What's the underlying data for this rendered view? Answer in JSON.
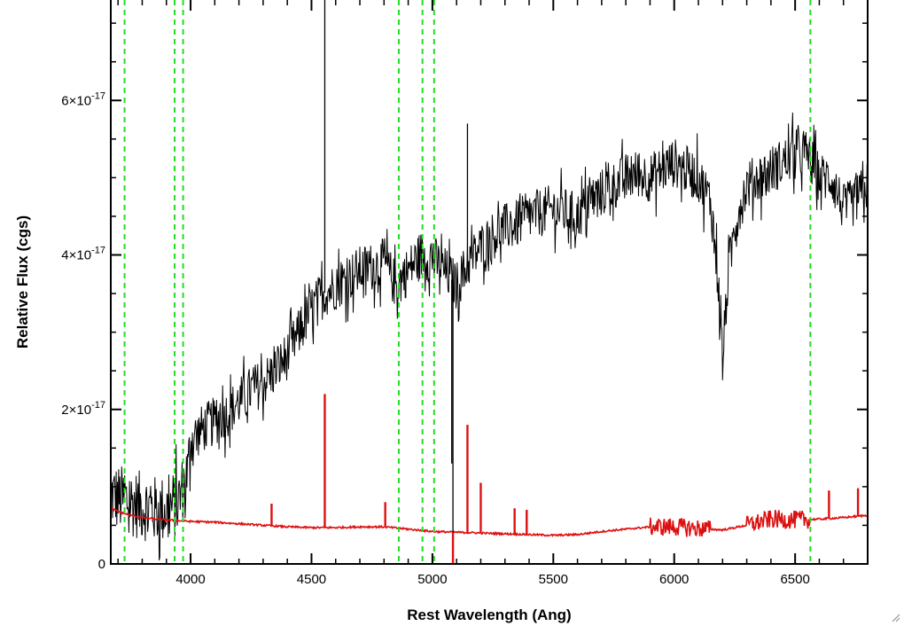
{
  "chart_data": {
    "type": "line",
    "title": "",
    "xlabel": "Rest Wavelength (Ang)",
    "ylabel": "Relative Flux (cgs)",
    "xlim": [
      3670,
      6800
    ],
    "ylim": [
      0,
      7.3e-17
    ],
    "grid": false,
    "legend": "none",
    "x_ticks": [
      {
        "value": 4000,
        "label": "4000"
      },
      {
        "value": 4500,
        "label": "4500"
      },
      {
        "value": 5000,
        "label": "5000"
      },
      {
        "value": 5500,
        "label": "5500"
      },
      {
        "value": 6000,
        "label": "6000"
      },
      {
        "value": 6500,
        "label": "6500"
      }
    ],
    "y_ticks": [
      {
        "value": 0,
        "base": "0",
        "exp": ""
      },
      {
        "value": 2e-17,
        "base": "2×10",
        "exp": "-17"
      },
      {
        "value": 4e-17,
        "base": "4×10",
        "exp": "-17"
      },
      {
        "value": 6e-17,
        "base": "6×10",
        "exp": "-17"
      }
    ],
    "reference_lines": [
      3727,
      3934,
      3969,
      4861,
      4959,
      5007,
      6563
    ],
    "series": [
      {
        "color": "#000000",
        "x": [
          3670,
          3700,
          3750,
          3800,
          3850,
          3900,
          3950,
          3990,
          4000,
          4050,
          4100,
          4150,
          4200,
          4250,
          4300,
          4350,
          4400,
          4450,
          4500,
          4550,
          4600,
          4650,
          4700,
          4750,
          4800,
          4850,
          4900,
          4950,
          5000,
          5050,
          5100,
          5150,
          5200,
          5250,
          5300,
          5350,
          5400,
          5450,
          5500,
          5550,
          5600,
          5650,
          5700,
          5750,
          5800,
          5850,
          5900,
          5950,
          6000,
          6050,
          6100,
          6150,
          6180,
          6200,
          6220,
          6250,
          6300,
          6350,
          6400,
          6450,
          6500,
          6550,
          6600,
          6650,
          6700,
          6750,
          6800
        ],
        "y": [
          9e-18,
          8.5e-18,
          8e-18,
          7.5e-18,
          7e-18,
          7e-18,
          8e-18,
          1.2e-17,
          1.6e-17,
          1.75e-17,
          1.85e-17,
          1.95e-17,
          2.1e-17,
          2.25e-17,
          2.35e-17,
          2.5e-17,
          2.7e-17,
          3e-17,
          3.3e-17,
          3.5e-17,
          3.6e-17,
          3.7e-17,
          3.8e-17,
          3.85e-17,
          3.9e-17,
          3.6e-17,
          3.8e-17,
          4e-17,
          3.95e-17,
          3.8e-17,
          3.6e-17,
          3.9e-17,
          4.1e-17,
          4.25e-17,
          4.35e-17,
          4.4e-17,
          4.5e-17,
          4.55e-17,
          4.6e-17,
          4.55e-17,
          4.5e-17,
          4.7e-17,
          4.8e-17,
          4.9e-17,
          5e-17,
          5.05e-17,
          5e-17,
          5.1e-17,
          5.2e-17,
          5.1e-17,
          5e-17,
          4.7e-17,
          3.8e-17,
          2.6e-17,
          3.6e-17,
          4.4e-17,
          4.9e-17,
          5e-17,
          5.1e-17,
          5.2e-17,
          5.3e-17,
          5.3e-17,
          5e-17,
          5e-17,
          4.6e-17,
          4.7e-17,
          4.9e-17
        ]
      },
      {
        "color": "#dd1010",
        "x": [
          3670,
          3700,
          3750,
          3800,
          3850,
          3900,
          3950,
          4000,
          4100,
          4200,
          4300,
          4400,
          4500,
          4600,
          4700,
          4800,
          4900,
          5000,
          5100,
          5200,
          5300,
          5400,
          5500,
          5600,
          5700,
          5800,
          5900,
          6000,
          6100,
          6200,
          6300,
          6400,
          6500,
          6600,
          6700,
          6800
        ],
        "y": [
          7.2e-18,
          6.8e-18,
          6.3e-18,
          6e-18,
          5.8e-18,
          5.7e-18,
          5.6e-18,
          5.5e-18,
          5.4e-18,
          5.2e-18,
          5e-18,
          4.8e-18,
          4.7e-18,
          4.7e-18,
          4.8e-18,
          4.8e-18,
          4.5e-18,
          4.2e-18,
          4.1e-18,
          4e-18,
          3.9e-18,
          3.8e-18,
          3.7e-18,
          3.8e-18,
          4.2e-18,
          4.5e-18,
          4.8e-18,
          4.8e-18,
          4.6e-18,
          4.4e-18,
          5e-18,
          5.8e-18,
          5.7e-18,
          5.8e-18,
          6e-18,
          6.3e-18
        ]
      }
    ],
    "line_features": {
      "black": [
        {
          "x": 4555,
          "y": 7.4e-17
        },
        {
          "x": 5080,
          "y": 1.3e-17
        },
        {
          "x": 5145,
          "y": 5.7e-17
        },
        {
          "x": 5085,
          "y": 0.0
        }
      ],
      "red": [
        {
          "x": 4555,
          "y": 2.2e-17
        },
        {
          "x": 5145,
          "y": 1.8e-17
        },
        {
          "x": 5200,
          "y": 1.05e-17
        },
        {
          "x": 4805,
          "y": 8e-18
        },
        {
          "x": 4335,
          "y": 7.8e-18
        },
        {
          "x": 5340,
          "y": 7.2e-18
        },
        {
          "x": 5390,
          "y": 7e-18
        },
        {
          "x": 6640,
          "y": 9.5e-18
        },
        {
          "x": 6760,
          "y": 9.8e-18
        },
        {
          "x": 5085,
          "y": 0.0
        }
      ]
    }
  }
}
